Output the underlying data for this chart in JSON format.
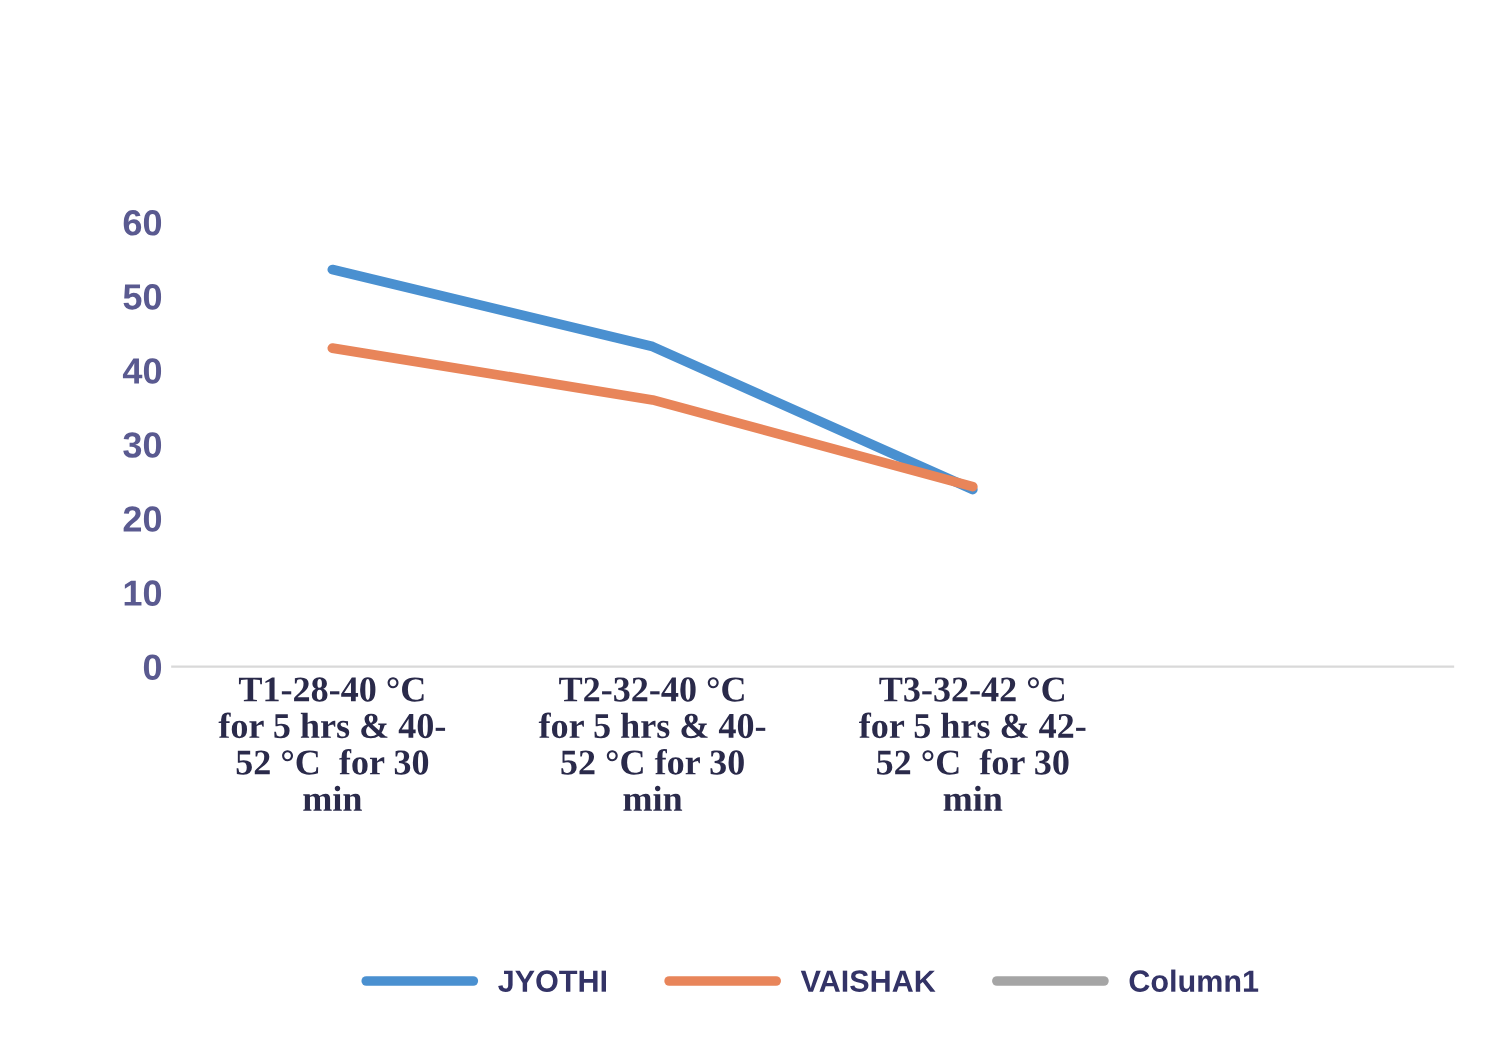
{
  "chart_data": {
    "type": "line",
    "categories": [
      "T1-28-40 °C\nfor 5 hrs & 40-\n52 °C  for 30\nmin",
      "T2-32-40 °C\nfor 5 hrs & 40-\n52 °C for 30\nmin",
      "T3-32-42 °C\nfor 5 hrs & 42-\n52 °C  for 30\nmin",
      null
    ],
    "series": [
      {
        "name": "JYOTHI",
        "color": "#4a90d0",
        "values": [
          53.6,
          43.2,
          23.9,
          null
        ]
      },
      {
        "name": "VAISHAK",
        "color": "#e8855a",
        "values": [
          43,
          36,
          24.3,
          null
        ]
      },
      {
        "name": "Column1",
        "color": "#a5a5a5",
        "values": [
          null,
          null,
          null,
          null
        ]
      }
    ],
    "ylim": [
      0,
      60
    ],
    "yticks": [
      0,
      10,
      20,
      30,
      40,
      50,
      60
    ],
    "grid": false,
    "legend": "bottom"
  }
}
